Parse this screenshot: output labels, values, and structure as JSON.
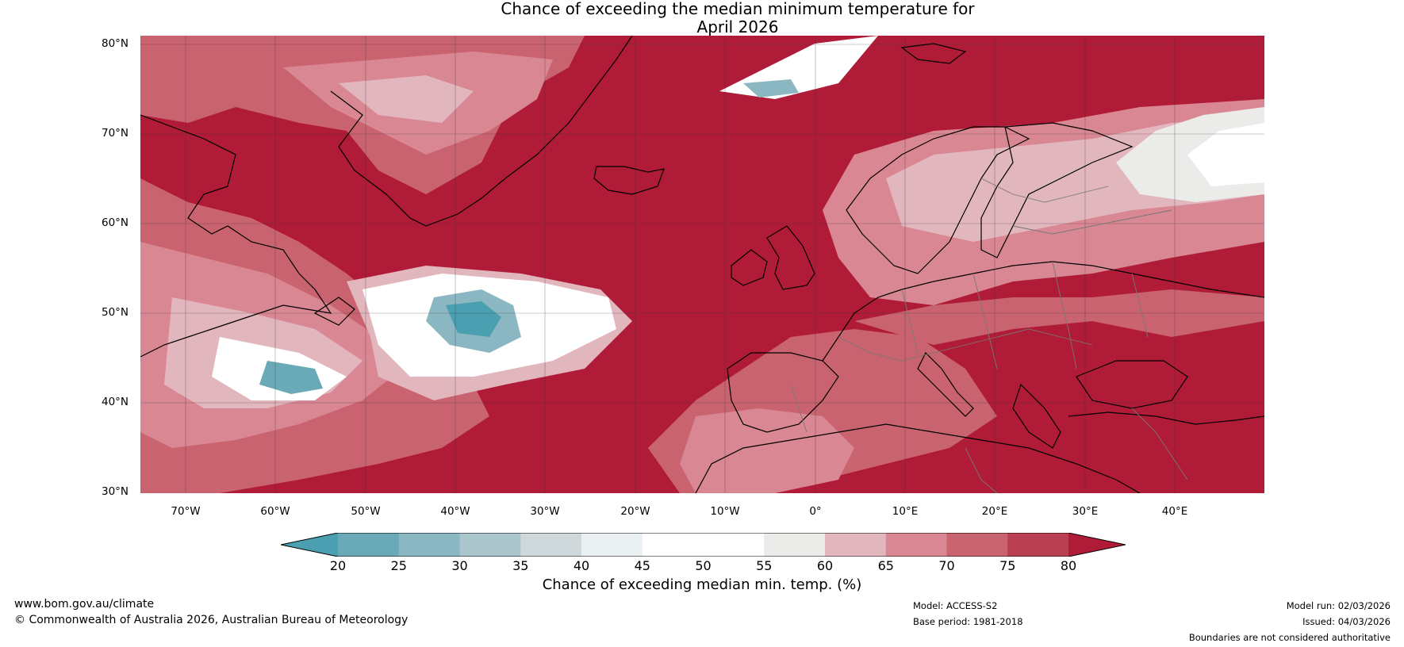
{
  "title": {
    "line1": "Chance of exceeding the median minimum temperature for",
    "line2": "April 2026"
  },
  "map": {
    "lat_labels": [
      "80°N",
      "70°N",
      "60°N",
      "50°N",
      "40°N",
      "30°N"
    ],
    "lon_labels": [
      "70°W",
      "60°W",
      "50°W",
      "40°W",
      "30°W",
      "20°W",
      "10°W",
      "0°",
      "10°E",
      "20°E",
      "30°E",
      "40°E"
    ],
    "extent": {
      "lon_min": -75,
      "lon_max": 50,
      "lat_min": 30,
      "lat_max": 81
    },
    "background_color": "#b01c38"
  },
  "colorbar": {
    "ticks": [
      "20",
      "25",
      "30",
      "35",
      "40",
      "45",
      "50",
      "55",
      "60",
      "65",
      "70",
      "75",
      "80"
    ],
    "colors": [
      "#4a9fb0",
      "#6aa9b7",
      "#8bb7c3",
      "#abc5cd",
      "#cfd8da",
      "#eaf0f2",
      "#ffffff",
      "#ffffff",
      "#ebebe9",
      "#e2b6bd",
      "#d98793",
      "#c9636f",
      "#b93f52",
      "#b01c38"
    ],
    "label": "Chance of exceeding median min. temp. (%)"
  },
  "footer": {
    "url": "www.bom.gov.au/climate",
    "copyright": "© Commonwealth of Australia 2026, Australian Bureau of Meteorology",
    "model": "Model: ACCESS-S2",
    "base_period": "Base period: 1981-2018",
    "model_run": "Model run: 02/03/2026",
    "issued": "Issued: 04/03/2026",
    "disclaimer": "Boundaries are not considered authoritative"
  }
}
